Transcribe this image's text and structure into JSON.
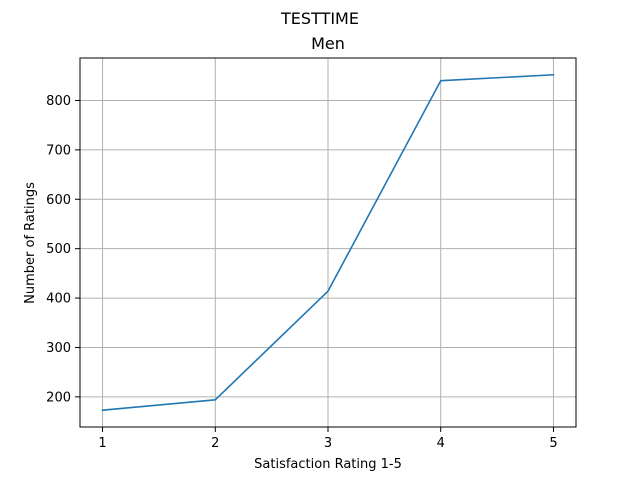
{
  "figure": {
    "suptitle": "TESTTIME"
  },
  "chart_data": {
    "type": "line",
    "title": "Men",
    "xlabel": "Satisfaction Rating 1-5",
    "ylabel": "Number of Ratings",
    "x": [
      1,
      2,
      3,
      4,
      5
    ],
    "series": [
      {
        "values": [
          173,
          194,
          414,
          840,
          852
        ],
        "color": "#1f77b4"
      }
    ],
    "xlim": [
      0.8,
      5.2
    ],
    "ylim": [
      139,
      886
    ],
    "xticks": [
      1,
      2,
      3,
      4,
      5
    ],
    "yticks": [
      200,
      300,
      400,
      500,
      600,
      700,
      800
    ],
    "grid": true,
    "legend": "none"
  }
}
